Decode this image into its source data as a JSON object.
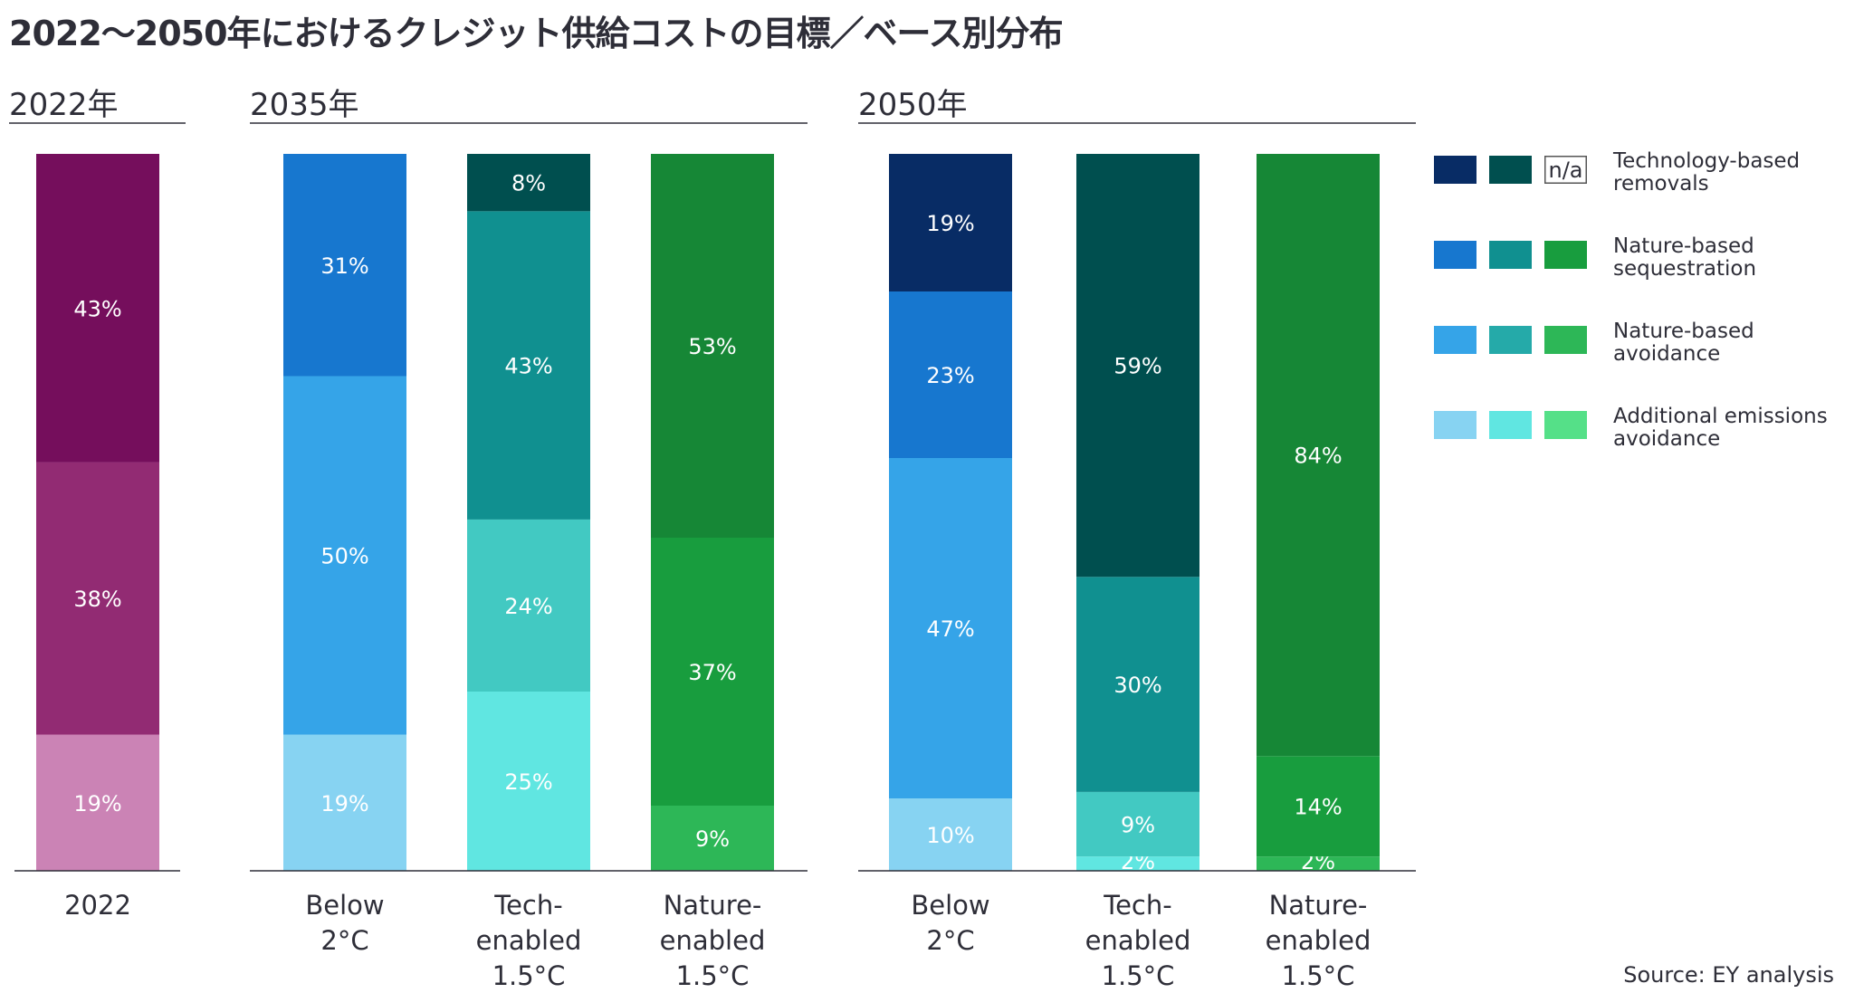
{
  "title": "2022〜2050年におけるクレジット供給コストの目標／ベース別分布",
  "source": "Source: EY analysis",
  "colors": {
    "na_border": "#555555",
    "rule": "#2e2e38"
  },
  "chart_data": {
    "type": "bar",
    "stacked": true,
    "unit": "%",
    "ylim": [
      0,
      100
    ],
    "groups": [
      {
        "name": "2022年",
        "bars": [
          {
            "category": [
              "2022"
            ],
            "segments": [
              {
                "series": "Additional emissions avoidance",
                "value": 19,
                "label": "19%",
                "color": "#cb83b5"
              },
              {
                "series": "Nature-based avoidance",
                "value": 38,
                "label": "38%",
                "color": "#922b73"
              },
              {
                "series": "Nature-based sequestration",
                "value": 43,
                "label": "43%",
                "color": "#750e5c"
              }
            ]
          }
        ]
      },
      {
        "name": "2035年",
        "bars": [
          {
            "category": [
              "Below",
              "2°C"
            ],
            "segments": [
              {
                "series": "Additional emissions avoidance",
                "value": 19,
                "label": "19%",
                "color": "#87d3f2"
              },
              {
                "series": "Nature-based avoidance",
                "value": 50,
                "label": "50%",
                "color": "#35a4e8"
              },
              {
                "series": "Nature-based sequestration",
                "value": 31,
                "label": "31%",
                "color": "#1777cf"
              }
            ]
          },
          {
            "category": [
              "Tech-",
              "enabled",
              "1.5°C"
            ],
            "segments": [
              {
                "series": "Additional emissions avoidance",
                "value": 25,
                "label": "25%",
                "color": "#60e6e1"
              },
              {
                "series": "Nature-based avoidance",
                "value": 24,
                "label": "24%",
                "color": "#42c9c2"
              },
              {
                "series": "Nature-based sequestration",
                "value": 43,
                "label": "43%",
                "color": "#109090"
              },
              {
                "series": "Technology-based removals",
                "value": 8,
                "label": "8%",
                "color": "#004f4f"
              }
            ]
          },
          {
            "category": [
              "Nature-",
              "enabled",
              "1.5°C"
            ],
            "segments": [
              {
                "series": "Additional emissions avoidance",
                "value": 9,
                "label": "9%",
                "color": "#2db757"
              },
              {
                "series": "Nature-based avoidance",
                "value": 37,
                "label": "37%",
                "color": "#189d3e"
              },
              {
                "series": "Nature-based sequestration",
                "value": 53,
                "label": "53%",
                "color": "#168736"
              }
            ]
          }
        ]
      },
      {
        "name": "2050年",
        "bars": [
          {
            "category": [
              "Below",
              "2°C"
            ],
            "segments": [
              {
                "series": "Additional emissions avoidance",
                "value": 10,
                "label": "10%",
                "color": "#87d3f2"
              },
              {
                "series": "Nature-based avoidance",
                "value": 47,
                "label": "47%",
                "color": "#35a4e8"
              },
              {
                "series": "Nature-based sequestration",
                "value": 23,
                "label": "23%",
                "color": "#1777cf"
              },
              {
                "series": "Technology-based removals",
                "value": 19,
                "label": "19%",
                "color": "#082c65"
              }
            ]
          },
          {
            "category": [
              "Tech-",
              "enabled",
              "1.5°C"
            ],
            "segments": [
              {
                "series": "Additional emissions avoidance",
                "value": 2,
                "label": "2%",
                "color": "#60e6e1"
              },
              {
                "series": "Nature-based avoidance",
                "value": 9,
                "label": "9%",
                "color": "#42c9c2"
              },
              {
                "series": "Nature-based sequestration",
                "value": 30,
                "label": "30%",
                "color": "#109090"
              },
              {
                "series": "Technology-based removals",
                "value": 59,
                "label": "59%",
                "color": "#004f4f"
              }
            ]
          },
          {
            "category": [
              "Nature-",
              "enabled",
              "1.5°C"
            ],
            "segments": [
              {
                "series": "Additional emissions avoidance",
                "value": 2,
                "label": "2%",
                "color": "#2db757"
              },
              {
                "series": "Nature-based avoidance",
                "value": 14,
                "label": "14%",
                "color": "#189d3e"
              },
              {
                "series": "Nature-based sequestration",
                "value": 84,
                "label": "84%",
                "color": "#168736"
              }
            ]
          }
        ]
      }
    ],
    "legend": {
      "placement": "right",
      "entries": [
        {
          "label": [
            "Technology-based",
            "removals"
          ],
          "swatches": [
            "#082c65",
            "#004f4f",
            "n/a"
          ]
        },
        {
          "label": [
            "Nature-based",
            "sequestration"
          ],
          "swatches": [
            "#1777cf",
            "#109090",
            "#189d3e"
          ]
        },
        {
          "label": [
            "Nature-based",
            "avoidance"
          ],
          "swatches": [
            "#35a4e8",
            "#25aaa9",
            "#2db757"
          ]
        },
        {
          "label": [
            "Additional emissions",
            "avoidance"
          ],
          "swatches": [
            "#87d3f2",
            "#60e6e1",
            "#55e088"
          ]
        }
      ]
    }
  }
}
